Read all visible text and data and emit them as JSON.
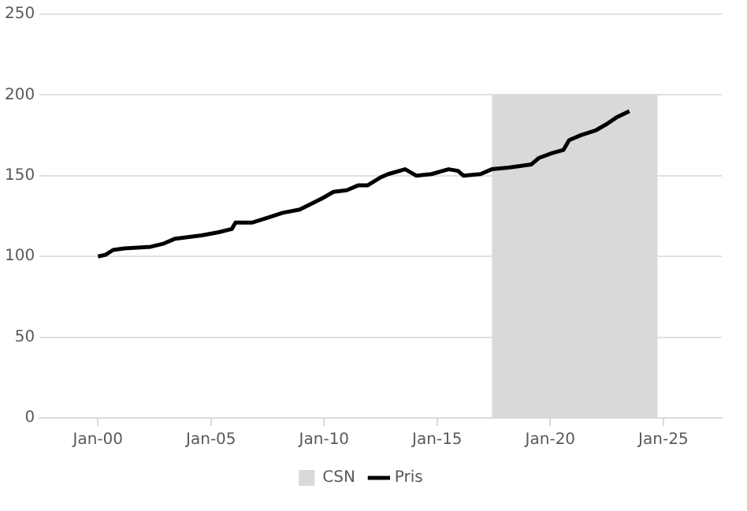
{
  "chart_data": {
    "type": "line",
    "xlim": [
      "1997-06",
      "2027-08"
    ],
    "xticks": [
      {
        "value": "2000-01",
        "label": "Jan-00"
      },
      {
        "value": "2005-01",
        "label": "Jan-05"
      },
      {
        "value": "2010-01",
        "label": "Jan-10"
      },
      {
        "value": "2015-01",
        "label": "Jan-15"
      },
      {
        "value": "2020-01",
        "label": "Jan-20"
      },
      {
        "value": "2025-01",
        "label": "Jan-25"
      }
    ],
    "ylim": [
      0,
      250
    ],
    "yticks": [
      0,
      50,
      100,
      150,
      200,
      250
    ],
    "grid": "y",
    "legend": "bottom",
    "series": [
      {
        "name": "CSN",
        "type": "area",
        "color": "#d9d9d9",
        "x": [
          "2017-06",
          "2024-10"
        ],
        "values": [
          200,
          200
        ]
      },
      {
        "name": "Pris",
        "type": "line",
        "color": "#000000",
        "x": [
          "2000-01",
          "2000-05",
          "2000-09",
          "2001-03",
          "2002-05",
          "2002-12",
          "2003-06",
          "2004-08",
          "2005-05",
          "2005-12",
          "2006-02",
          "2006-11",
          "2007-07",
          "2008-03",
          "2008-12",
          "2009-07",
          "2009-12",
          "2010-06",
          "2011-01",
          "2011-07",
          "2011-12",
          "2012-07",
          "2012-11",
          "2013-08",
          "2014-02",
          "2014-10",
          "2015-07",
          "2015-12",
          "2016-03",
          "2016-12",
          "2017-06",
          "2018-03",
          "2019-03",
          "2019-07",
          "2020-02",
          "2020-08",
          "2020-11",
          "2021-05",
          "2022-01",
          "2022-07",
          "2022-12",
          "2023-07"
        ],
        "values": [
          100,
          101,
          104,
          105,
          106,
          108,
          111,
          113,
          115,
          117,
          121,
          121,
          124,
          127,
          129,
          133,
          136,
          140,
          141,
          144,
          144,
          149,
          151,
          154,
          150,
          151,
          154,
          153,
          150,
          151,
          154,
          155,
          157,
          161,
          164,
          166,
          172,
          175,
          178,
          182,
          186,
          190
        ]
      }
    ]
  }
}
